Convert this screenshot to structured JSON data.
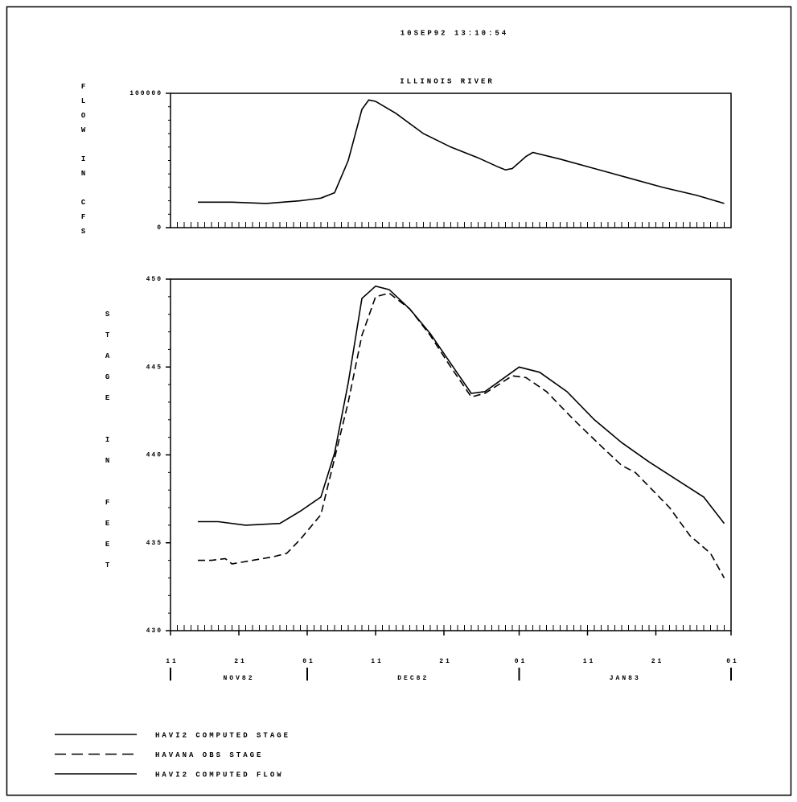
{
  "timestamp": "10SEP92 13:10:54",
  "chart_data": [
    {
      "type": "line",
      "title": "ILLINOIS RIVER",
      "ylabel": "FLOW IN CFS",
      "xlim": [
        "1982-11-11",
        "1983-02-01"
      ],
      "ylim": [
        0,
        100000
      ],
      "yticks": [
        0,
        100000
      ],
      "series": [
        {
          "name": "HAVI2 COMPUTED FLOW",
          "color": "#000000",
          "line_style": "solid",
          "x": [
            "1982-11-15",
            "1982-11-20",
            "1982-11-25",
            "1982-11-30",
            "1982-12-03",
            "1982-12-05",
            "1982-12-07",
            "1982-12-09",
            "1982-12-10",
            "1982-12-11",
            "1982-12-14",
            "1982-12-18",
            "1982-12-22",
            "1982-12-26",
            "1982-12-29",
            "1982-12-30",
            "1982-12-31",
            "1983-01-02",
            "1983-01-03",
            "1983-01-07",
            "1983-01-12",
            "1983-01-17",
            "1983-01-22",
            "1983-01-27",
            "1983-01-31"
          ],
          "values": [
            19000,
            19000,
            18000,
            20000,
            22000,
            26000,
            50000,
            88000,
            95000,
            94000,
            85000,
            70000,
            60000,
            52000,
            45000,
            43000,
            44000,
            53000,
            56000,
            51000,
            44000,
            37000,
            30000,
            24000,
            18000
          ]
        }
      ]
    },
    {
      "type": "line",
      "ylabel": "STAGE IN FEET",
      "xlim": [
        "1982-11-11",
        "1983-02-01"
      ],
      "xticks": [
        {
          "value": "1982-11-11",
          "label": "11"
        },
        {
          "value": "1982-11-21",
          "label": "21"
        },
        {
          "value": "1982-12-01",
          "label": "01"
        },
        {
          "value": "1982-12-11",
          "label": "11"
        },
        {
          "value": "1982-12-21",
          "label": "21"
        },
        {
          "value": "1983-01-01",
          "label": "01"
        },
        {
          "value": "1983-01-11",
          "label": "11"
        },
        {
          "value": "1983-01-21",
          "label": "21"
        },
        {
          "value": "1983-02-01",
          "label": "01"
        }
      ],
      "months": [
        {
          "label": "NOV82",
          "start": "1982-11-11",
          "end": "1982-12-01"
        },
        {
          "label": "DEC82",
          "start": "1982-12-01",
          "end": "1983-01-01"
        },
        {
          "label": "JAN83",
          "start": "1983-01-01",
          "end": "1983-02-01"
        }
      ],
      "ylim": [
        430,
        450
      ],
      "yticks": [
        430,
        435,
        440,
        445,
        450
      ],
      "series": [
        {
          "name": "HAVI2 COMPUTED STAGE",
          "color": "#000000",
          "line_style": "solid",
          "x": [
            "1982-11-15",
            "1982-11-18",
            "1982-11-22",
            "1982-11-27",
            "1982-11-30",
            "1982-12-03",
            "1982-12-05",
            "1982-12-07",
            "1982-12-09",
            "1982-12-11",
            "1982-12-13",
            "1982-12-16",
            "1982-12-19",
            "1982-12-22",
            "1982-12-25",
            "1982-12-27",
            "1983-01-01",
            "1983-01-04",
            "1983-01-08",
            "1983-01-12",
            "1983-01-16",
            "1983-01-20",
            "1983-01-24",
            "1983-01-28",
            "1983-01-31"
          ],
          "values": [
            436.2,
            436.2,
            436.0,
            436.1,
            436.8,
            437.6,
            440.1,
            444.1,
            448.9,
            449.6,
            449.4,
            448.3,
            446.9,
            445.2,
            443.5,
            443.6,
            445.0,
            444.7,
            443.6,
            442.0,
            440.7,
            439.6,
            438.6,
            437.6,
            436.1
          ]
        },
        {
          "name": "HAVANA OBS STAGE",
          "color": "#000000",
          "line_style": "dashed",
          "x": [
            "1982-11-15",
            "1982-11-17",
            "1982-11-19",
            "1982-11-20",
            "1982-11-23",
            "1982-11-26",
            "1982-11-28",
            "1982-11-30",
            "1982-12-03",
            "1982-12-05",
            "1982-12-07",
            "1982-12-09",
            "1982-12-11",
            "1982-12-13",
            "1982-12-16",
            "1982-12-19",
            "1982-12-22",
            "1982-12-25",
            "1982-12-27",
            "1982-12-31",
            "1983-01-02",
            "1983-01-05",
            "1983-01-09",
            "1983-01-13",
            "1983-01-16",
            "1983-01-18",
            "1983-01-20",
            "1983-01-23",
            "1983-01-26",
            "1983-01-29",
            "1983-01-31"
          ],
          "values": [
            434.0,
            434.0,
            434.1,
            433.8,
            434.0,
            434.2,
            434.4,
            435.2,
            436.6,
            439.8,
            443.0,
            446.8,
            449.0,
            449.2,
            448.3,
            446.8,
            445.0,
            443.3,
            443.5,
            444.5,
            444.4,
            443.6,
            442.0,
            440.5,
            439.4,
            439.0,
            438.2,
            437.0,
            435.4,
            434.4,
            433.0
          ]
        }
      ]
    }
  ]
}
